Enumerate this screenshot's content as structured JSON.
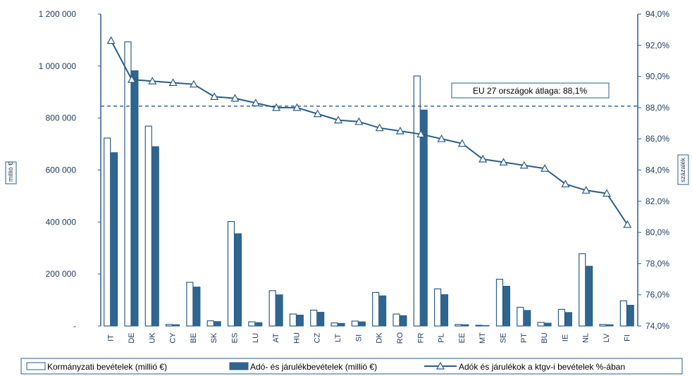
{
  "chart_data": {
    "type": "bar",
    "categories": [
      "IT",
      "DE",
      "UK",
      "CY",
      "BE",
      "SK",
      "ES",
      "LU",
      "AT",
      "HU",
      "CZ",
      "LT",
      "SI",
      "DK",
      "RO",
      "FR",
      "PL",
      "EE",
      "MT",
      "SE",
      "PT",
      "BU",
      "IE",
      "NL",
      "LV",
      "FI"
    ],
    "series": [
      {
        "name": "Kormányzati bevételek (millió €)",
        "type": "bar",
        "axis": "left",
        "values": [
          723000,
          1093000,
          769000,
          6000,
          168000,
          20000,
          402000,
          16000,
          136000,
          46000,
          61000,
          12000,
          19000,
          129000,
          46000,
          962000,
          143000,
          6000,
          3000,
          180000,
          72000,
          14000,
          64000,
          278000,
          6000,
          97000
        ]
      },
      {
        "name": "Adó- és járulékbevételek (millió €)",
        "type": "bar",
        "axis": "left",
        "values": [
          667000,
          982000,
          690000,
          5000,
          150000,
          17000,
          355000,
          13000,
          120000,
          42000,
          53000,
          10000,
          16000,
          116000,
          40000,
          831000,
          121000,
          5000,
          2000,
          153000,
          60000,
          11000,
          52000,
          230000,
          5000,
          80000
        ]
      },
      {
        "name": "Adók és járulékok a ktgv-i bevételek %-ában",
        "type": "line",
        "axis": "right",
        "values": [
          92.3,
          89.8,
          89.7,
          89.6,
          89.5,
          88.7,
          88.6,
          88.3,
          88.0,
          88.0,
          87.6,
          87.2,
          87.1,
          86.7,
          86.5,
          86.3,
          86.0,
          85.7,
          84.7,
          84.5,
          84.3,
          84.1,
          83.1,
          82.7,
          82.5,
          80.5
        ]
      }
    ],
    "y_left": {
      "label": "millió €",
      "ylim": [
        0,
        1200000
      ],
      "ticks": [
        0,
        200000,
        400000,
        600000,
        800000,
        1000000,
        1200000
      ],
      "tick_labels": [
        "-",
        "200 000",
        "400 000",
        "600 000",
        "800 000",
        "1 000 000",
        "1 200 000"
      ]
    },
    "y_right": {
      "label": "százalék",
      "ylim": [
        74,
        94
      ],
      "ticks": [
        74,
        76,
        78,
        80,
        82,
        84,
        86,
        88,
        90,
        92,
        94
      ],
      "tick_labels": [
        "74,0%",
        "76,0%",
        "78,0%",
        "80,0%",
        "82,0%",
        "84,0%",
        "86,0%",
        "88,0%",
        "90,0%",
        "92,0%",
        "94,0%"
      ]
    },
    "reference_line": {
      "value": 88.1,
      "axis": "right",
      "label": "EU 27 országok átlaga: 88,1%"
    },
    "legend_position": "bottom",
    "grid": false,
    "colors": {
      "axis": "#2a5d8a",
      "bar_fill_dark": "#2f6690",
      "bar_fill_light": "#ffffff",
      "bar_stroke": "#2a5d8a",
      "line": "#2a5d8a",
      "text": "#1e3a5f"
    }
  }
}
